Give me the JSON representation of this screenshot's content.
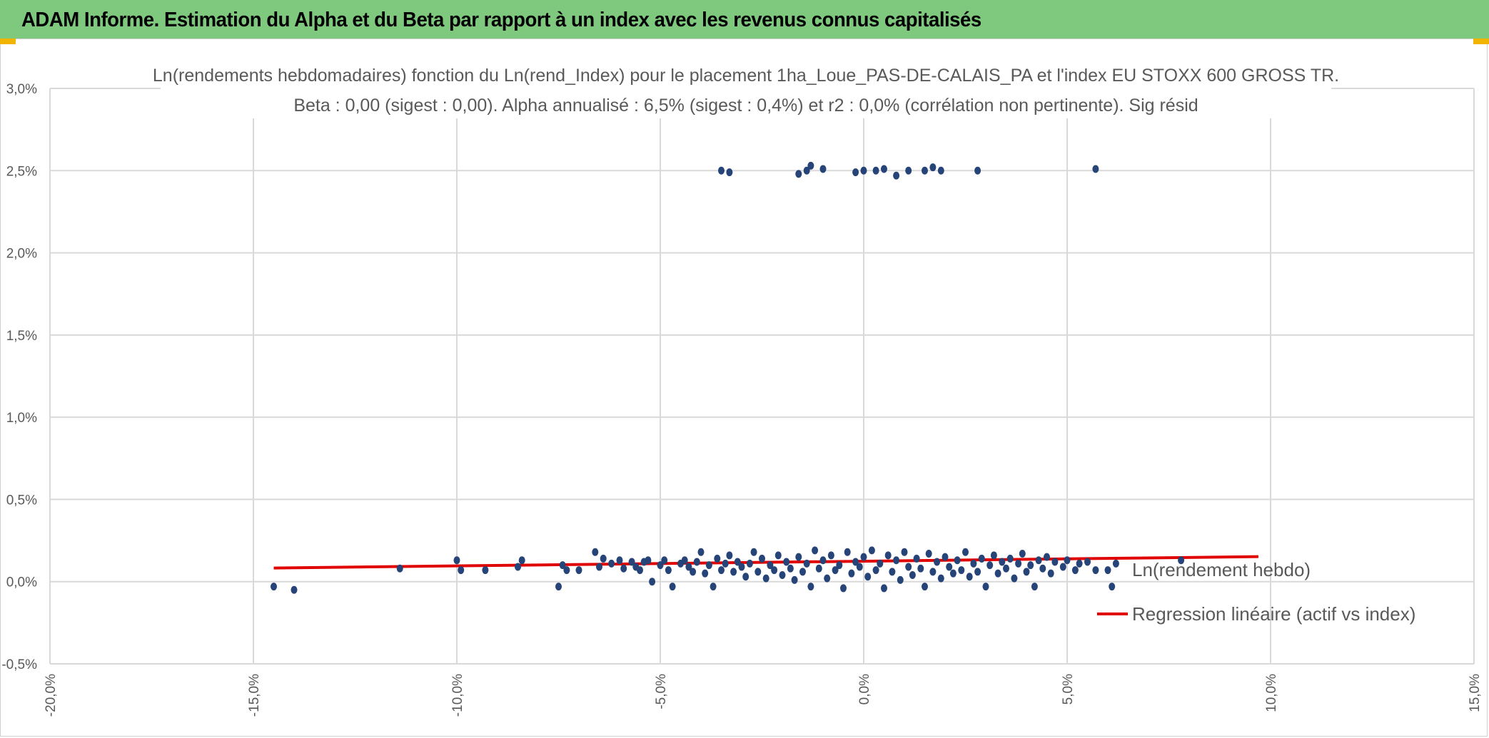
{
  "header": {
    "title": "ADAM Informe. Estimation du Alpha et du Beta par rapport à un index avec les revenus connus capitalisés"
  },
  "colors": {
    "header_bg": "#7ec97e",
    "points": "#264478",
    "regression": "#e00000",
    "grid": "#d9d9d9",
    "text": "#595959",
    "corner": "#f1b500"
  },
  "chart_data": {
    "type": "scatter",
    "title": "Ln(rendements hebdomadaires) fonction du Ln(rend_Index) pour le placement 1ha_Loue_PAS-DE-CALAIS_PA et l'index EU STOXX 600 GROSS TR.",
    "subtitle": "Beta : 0,00 (sigest : 0,00). Alpha annualisé : 6,5% (sigest : 0,4%) et r2 : 0,0% (corrélation non pertinente). Sig résid",
    "xlim": [
      -0.2,
      0.15
    ],
    "ylim": [
      -0.005,
      0.03
    ],
    "grid": true,
    "legend_position": "right",
    "x_ticks": [
      {
        "value": -0.2,
        "label": "-20,0%"
      },
      {
        "value": -0.15,
        "label": "-15,0%"
      },
      {
        "value": -0.1,
        "label": "-10,0%"
      },
      {
        "value": -0.05,
        "label": "-5,0%"
      },
      {
        "value": 0.0,
        "label": "0,0%"
      },
      {
        "value": 0.05,
        "label": "5,0%"
      },
      {
        "value": 0.1,
        "label": "10,0%"
      },
      {
        "value": 0.15,
        "label": "15,0%"
      }
    ],
    "y_ticks": [
      {
        "value": 0.03,
        "label": "3,0%"
      },
      {
        "value": 0.025,
        "label": "2,5%"
      },
      {
        "value": 0.02,
        "label": "2,0%"
      },
      {
        "value": 0.015,
        "label": "1,5%"
      },
      {
        "value": 0.01,
        "label": "1,0%"
      },
      {
        "value": 0.005,
        "label": "0,5%"
      },
      {
        "value": 0.0,
        "label": "0,0%"
      },
      {
        "value": -0.005,
        "label": "-0,5%"
      }
    ],
    "series": [
      {
        "name": "Ln(rendement hebdo)",
        "kind": "scatter",
        "points": [
          [
            -0.145,
            -0.0003
          ],
          [
            -0.14,
            -0.0005
          ],
          [
            -0.114,
            0.0008
          ],
          [
            -0.1,
            0.0013
          ],
          [
            -0.099,
            0.0007
          ],
          [
            -0.093,
            0.0007
          ],
          [
            -0.085,
            0.0009
          ],
          [
            -0.084,
            0.0013
          ],
          [
            -0.075,
            -0.0003
          ],
          [
            -0.074,
            0.001
          ],
          [
            -0.073,
            0.0007
          ],
          [
            -0.07,
            0.0007
          ],
          [
            -0.066,
            0.0018
          ],
          [
            -0.065,
            0.0009
          ],
          [
            -0.064,
            0.0014
          ],
          [
            -0.062,
            0.0011
          ],
          [
            -0.06,
            0.0013
          ],
          [
            -0.059,
            0.0008
          ],
          [
            -0.057,
            0.0012
          ],
          [
            -0.056,
            0.0009
          ],
          [
            -0.055,
            0.0007
          ],
          [
            -0.054,
            0.0012
          ],
          [
            -0.053,
            0.0013
          ],
          [
            -0.052,
            0.0
          ],
          [
            -0.05,
            0.001
          ],
          [
            -0.049,
            0.0013
          ],
          [
            -0.048,
            0.0007
          ],
          [
            -0.047,
            -0.0003
          ],
          [
            -0.045,
            0.0011
          ],
          [
            -0.044,
            0.0013
          ],
          [
            -0.043,
            0.0009
          ],
          [
            -0.042,
            0.0006
          ],
          [
            -0.041,
            0.0012
          ],
          [
            -0.04,
            0.0018
          ],
          [
            -0.039,
            0.0005
          ],
          [
            -0.038,
            0.001
          ],
          [
            -0.037,
            -0.0003
          ],
          [
            -0.036,
            0.0014
          ],
          [
            -0.035,
            0.0007
          ],
          [
            -0.034,
            0.0011
          ],
          [
            -0.033,
            0.0016
          ],
          [
            -0.032,
            0.0006
          ],
          [
            -0.031,
            0.0012
          ],
          [
            -0.03,
            0.0009
          ],
          [
            -0.029,
            0.0003
          ],
          [
            -0.028,
            0.0011
          ],
          [
            -0.027,
            0.0018
          ],
          [
            -0.026,
            0.0006
          ],
          [
            -0.025,
            0.0014
          ],
          [
            -0.024,
            0.0002
          ],
          [
            -0.023,
            0.001
          ],
          [
            -0.022,
            0.0007
          ],
          [
            -0.021,
            0.0016
          ],
          [
            -0.02,
            0.0004
          ],
          [
            -0.019,
            0.0012
          ],
          [
            -0.018,
            0.0008
          ],
          [
            -0.017,
            0.0001
          ],
          [
            -0.016,
            0.0015
          ],
          [
            -0.015,
            0.0006
          ],
          [
            -0.014,
            0.0011
          ],
          [
            -0.013,
            -0.0003
          ],
          [
            -0.012,
            0.0019
          ],
          [
            -0.011,
            0.0008
          ],
          [
            -0.01,
            0.0013
          ],
          [
            -0.009,
            0.0002
          ],
          [
            -0.008,
            0.0016
          ],
          [
            -0.007,
            0.0007
          ],
          [
            -0.006,
            0.001
          ],
          [
            -0.005,
            -0.0004
          ],
          [
            -0.004,
            0.0018
          ],
          [
            -0.003,
            0.0005
          ],
          [
            -0.002,
            0.0012
          ],
          [
            -0.001,
            0.0009
          ],
          [
            0.0,
            0.0015
          ],
          [
            0.001,
            0.0003
          ],
          [
            0.002,
            0.0019
          ],
          [
            0.003,
            0.0007
          ],
          [
            0.004,
            0.0011
          ],
          [
            0.005,
            -0.0004
          ],
          [
            0.006,
            0.0016
          ],
          [
            0.007,
            0.0006
          ],
          [
            0.008,
            0.0013
          ],
          [
            0.009,
            0.0001
          ],
          [
            0.01,
            0.0018
          ],
          [
            0.011,
            0.0009
          ],
          [
            0.012,
            0.0004
          ],
          [
            0.013,
            0.0014
          ],
          [
            0.014,
            0.0008
          ],
          [
            0.015,
            -0.0003
          ],
          [
            0.016,
            0.0017
          ],
          [
            0.017,
            0.0006
          ],
          [
            0.018,
            0.0012
          ],
          [
            0.019,
            0.0002
          ],
          [
            0.02,
            0.0015
          ],
          [
            0.021,
            0.0009
          ],
          [
            0.022,
            0.0005
          ],
          [
            0.023,
            0.0013
          ],
          [
            0.024,
            0.0007
          ],
          [
            0.025,
            0.0018
          ],
          [
            0.026,
            0.0003
          ],
          [
            0.027,
            0.0011
          ],
          [
            0.028,
            0.0006
          ],
          [
            0.029,
            0.0014
          ],
          [
            0.03,
            -0.0003
          ],
          [
            0.031,
            0.001
          ],
          [
            0.032,
            0.0016
          ],
          [
            0.033,
            0.0005
          ],
          [
            0.034,
            0.0012
          ],
          [
            0.035,
            0.0008
          ],
          [
            0.036,
            0.0014
          ],
          [
            0.037,
            0.0002
          ],
          [
            0.038,
            0.0011
          ],
          [
            0.039,
            0.0017
          ],
          [
            0.04,
            0.0006
          ],
          [
            0.041,
            0.001
          ],
          [
            0.042,
            -0.0003
          ],
          [
            0.043,
            0.0013
          ],
          [
            0.044,
            0.0008
          ],
          [
            0.045,
            0.0015
          ],
          [
            0.046,
            0.0005
          ],
          [
            0.047,
            0.0012
          ],
          [
            0.049,
            0.0009
          ],
          [
            0.05,
            0.0013
          ],
          [
            0.052,
            0.0007
          ],
          [
            0.053,
            0.0011
          ],
          [
            0.055,
            0.0012
          ],
          [
            0.057,
            0.0007
          ],
          [
            0.06,
            0.0007
          ],
          [
            0.061,
            -0.0003
          ],
          [
            0.062,
            0.0011
          ],
          [
            0.078,
            0.0013
          ],
          [
            -0.035,
            0.025
          ],
          [
            -0.033,
            0.0249
          ],
          [
            -0.016,
            0.0248
          ],
          [
            -0.014,
            0.025
          ],
          [
            -0.013,
            0.0253
          ],
          [
            -0.01,
            0.0251
          ],
          [
            -0.002,
            0.0249
          ],
          [
            0.0,
            0.025
          ],
          [
            0.003,
            0.025
          ],
          [
            0.005,
            0.0251
          ],
          [
            0.008,
            0.0247
          ],
          [
            0.011,
            0.025
          ],
          [
            0.015,
            0.025
          ],
          [
            0.017,
            0.0252
          ],
          [
            0.019,
            0.025
          ],
          [
            0.028,
            0.025
          ],
          [
            0.057,
            0.0251
          ]
        ]
      },
      {
        "name": "Regression linéaire (actif vs index)",
        "kind": "line",
        "points": [
          [
            -0.145,
            0.00083
          ],
          [
            0.097,
            0.00152
          ]
        ]
      }
    ]
  }
}
